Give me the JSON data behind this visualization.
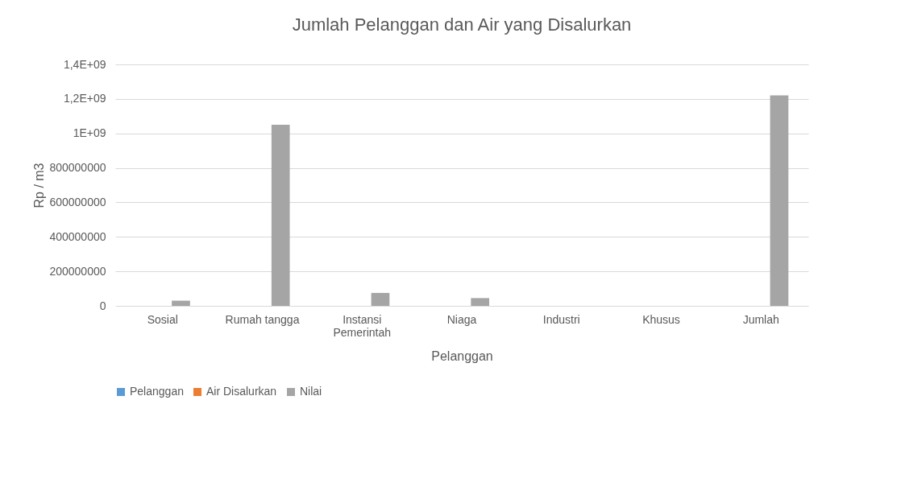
{
  "chart_data": {
    "type": "bar",
    "title": "Jumlah Pelanggan dan Air yang Disalurkan",
    "xlabel": "Pelanggan",
    "ylabel": "Rp / m3",
    "categories": [
      "Sosial",
      "Rumah tangga",
      "Instansi Pemerintah",
      "Niaga",
      "Industri",
      "Khusus",
      "Jumlah"
    ],
    "series": [
      {
        "name": "Pelanggan",
        "color": "#5b9bd5",
        "values": [
          0,
          0,
          0,
          0,
          0,
          0,
          0
        ]
      },
      {
        "name": "Air Disalurkan",
        "color": "#ed7d31",
        "values": [
          0,
          0,
          0,
          0,
          0,
          0,
          0
        ]
      },
      {
        "name": "Nilai",
        "color": "#a5a5a5",
        "values": [
          30000000,
          1050000000,
          75000000,
          45000000,
          0,
          0,
          1220000000
        ]
      }
    ],
    "ylim": [
      0,
      1400000000
    ],
    "yticks": [
      0,
      200000000,
      400000000,
      600000000,
      800000000,
      {
        "value": 1000000000,
        "label": "1E+09"
      },
      {
        "value": 1200000000,
        "label": "1,2E+09"
      },
      {
        "value": 1400000000,
        "label": "1,4E+09"
      }
    ],
    "grid": "y",
    "legend": "bottom"
  }
}
